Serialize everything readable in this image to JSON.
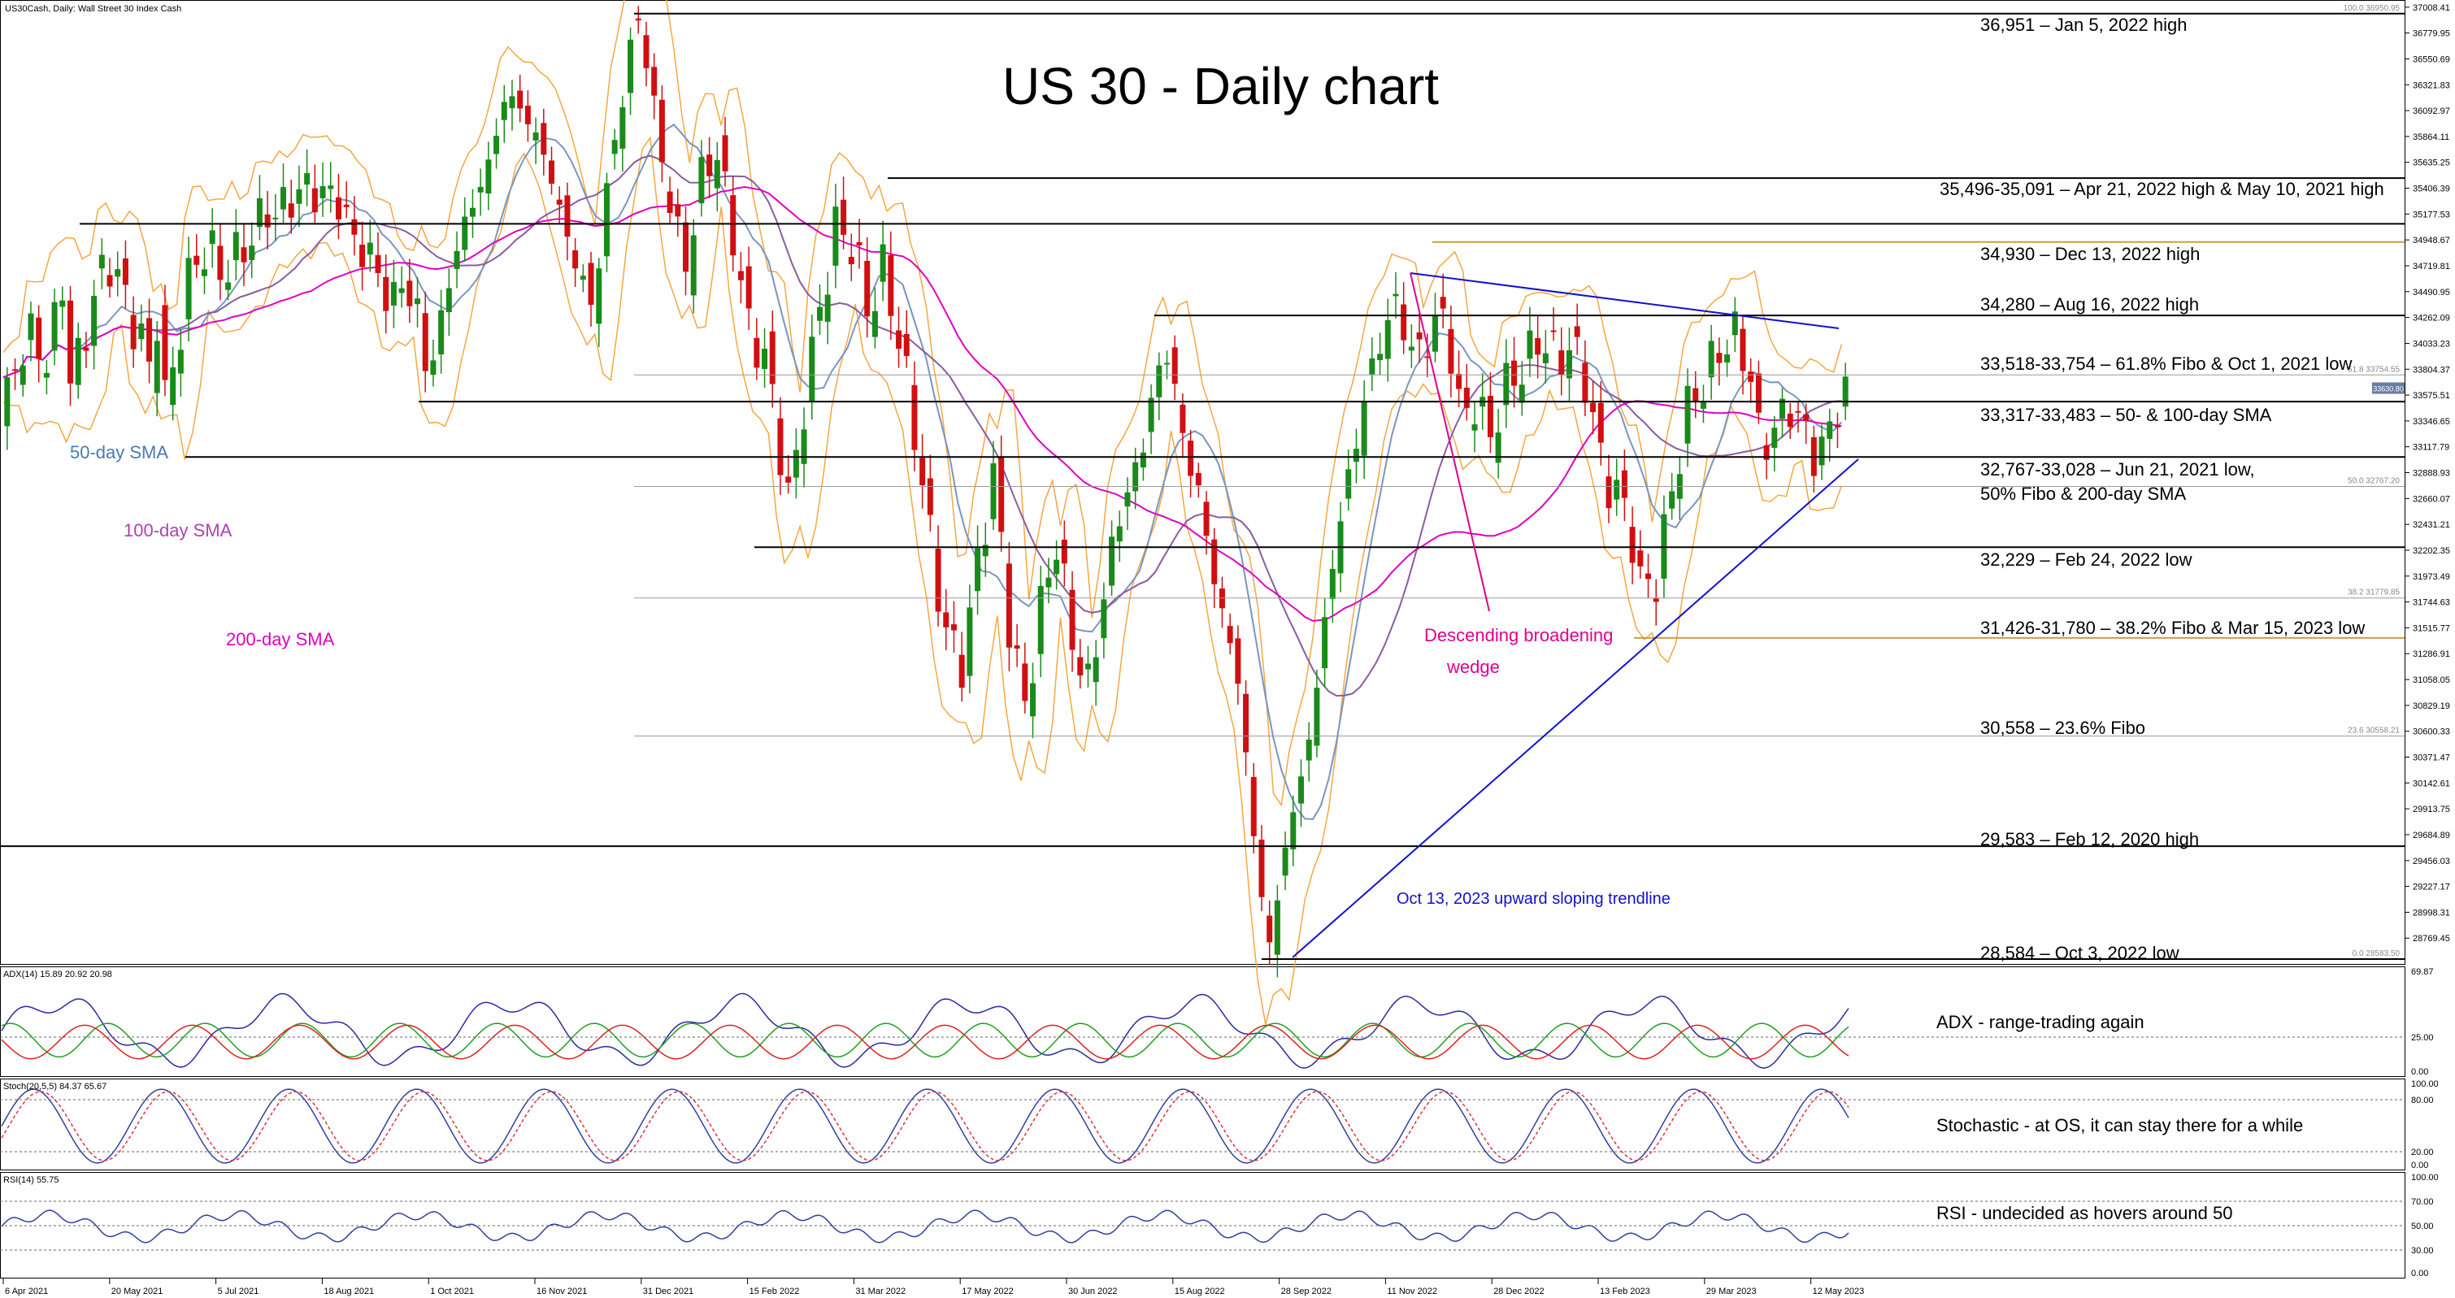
{
  "chart_data": {
    "type": "candlestick",
    "title": "US 30 - Daily chart",
    "instrument_header": "US30Cash, Daily:  Wall Street 30 Index Cash",
    "price_axis": {
      "range": [
        28584,
        37000
      ],
      "ticks": [
        "37008.41",
        "36779.95",
        "36550.69",
        "36321.83",
        "36092.97",
        "35864.11",
        "35635.25",
        "35406.39",
        "35177.53",
        "34948.67",
        "34719.81",
        "34490.95",
        "34262.09",
        "34033.23",
        "33804.37",
        "33575.51",
        "33346.65",
        "33117.79",
        "32888.93",
        "32660.07",
        "32431.21",
        "32202.35",
        "31973.49",
        "31744.63",
        "31515.77",
        "31286.91",
        "31058.05",
        "30829.19",
        "30600.33",
        "30371.47",
        "30142.61",
        "29913.75",
        "29684.89",
        "29456.03",
        "29227.17",
        "28998.31",
        "28769.45"
      ]
    },
    "date_axis": [
      "6 Apr 2021",
      "20 May 2021",
      "5 Jul 2021",
      "18 Aug 2021",
      "1 Oct 2021",
      "16 Nov 2021",
      "31 Dec 2021",
      "15 Feb 2022",
      "31 Mar 2022",
      "17 May 2022",
      "30 Jun 2022",
      "15 Aug 2022",
      "28 Sep 2022",
      "11 Nov 2022",
      "28 Dec 2022",
      "13 Feb 2023",
      "29 Mar 2023",
      "12 May 2023"
    ],
    "levels": [
      {
        "value": 36951,
        "label": "36,951 – Jan 5, 2022 high"
      },
      {
        "value": 35496,
        "label": "35,496-35,091 – Apr 21, 2022 high & May 10, 2021 high"
      },
      {
        "value": 35091,
        "label": ""
      },
      {
        "value": 34930,
        "label": "34,930 – Dec 13, 2022 high"
      },
      {
        "value": 34280,
        "label": "34,280 – Aug 16, 2022 high"
      },
      {
        "value": 33754,
        "label": "33,518-33,754 – 61.8% Fibo & Oct 1, 2021 low"
      },
      {
        "value": 33483,
        "label": "33,317-33,483 – 50- & 100-day SMA"
      },
      {
        "value": 33028,
        "label": "32,767-33,028 – Jun 21, 2021 low,"
      },
      {
        "value": 32767,
        "label": "50% Fibo & 200-day SMA"
      },
      {
        "value": 32229,
        "label": "32,229 – Feb 24, 2022 low"
      },
      {
        "value": 31780,
        "label": "31,426-31,780 – 38.2% Fibo & Mar 15, 2023 low"
      },
      {
        "value": 30558,
        "label": "30,558 – 23.6% Fibo"
      },
      {
        "value": 29583,
        "label": "29,583 – Feb 12, 2020 high"
      },
      {
        "value": 28584,
        "label": "28,584 – Oct 3, 2022 low"
      }
    ],
    "fib_labels": [
      "100.0 36950.95",
      "61.8 33754.55",
      "50.0 32767.20",
      "38.2 31779.85",
      "23.6 30558.21",
      "0.0 28583.50"
    ],
    "current_price": "33630.80",
    "annotations": {
      "sma50": "50-day SMA",
      "sma100": "100-day SMA",
      "sma200": "200-day SMA",
      "wedge_line1": "Descending broadening",
      "wedge_line2": "wedge",
      "trendline": "Oct 13, 2023 upward sloping trendline"
    },
    "colors": {
      "up": "#1a8a1a",
      "down": "#d01010",
      "sma50": "#7a95c0",
      "sma100": "#8a5ca0",
      "sma200": "#e000c0",
      "bands": "#f7a640",
      "trend": "#1010d0",
      "level": "#000000",
      "fib_gold": "#c8a040",
      "adx": "#2a2aa0",
      "dip": "#20a020",
      "dim": "#e02020",
      "stoch_main": "#3040a0",
      "stoch_sig": "#e03040",
      "rsi": "#3040a0",
      "wedge_label": "#e0008a",
      "ma_label_50": "#4a7ab0",
      "ma_label_100": "#b040b0"
    },
    "adx": {
      "header": "ADX(14) 15.89 20.92 20.98",
      "ticks": [
        "69.87",
        "25.00",
        "0.00"
      ],
      "note": "ADX - range-trading again"
    },
    "stoch": {
      "header": "Stoch(20,5,5) 84.37 65.67",
      "ticks": [
        "100.00",
        "80.00",
        "20.00",
        "0.00"
      ],
      "note": "Stochastic - at OS, it can stay there for a while"
    },
    "rsi": {
      "header": "RSI(14) 55.75",
      "ticks": [
        "100.00",
        "70.00",
        "50.00",
        "30.00",
        "0.00"
      ],
      "note": "RSI - undecided as hovers around 50"
    },
    "approx_closes": [
      [
        0,
        33300
      ],
      [
        10,
        33900
      ],
      [
        20,
        34100
      ],
      [
        30,
        33850
      ],
      [
        35,
        34250
      ],
      [
        40,
        34650
      ],
      [
        45,
        33500
      ],
      [
        50,
        33950
      ],
      [
        60,
        34500
      ],
      [
        70,
        34800
      ],
      [
        80,
        34350
      ],
      [
        90,
        34050
      ],
      [
        95,
        33700
      ],
      [
        100,
        34450
      ],
      [
        105,
        33300
      ],
      [
        110,
        33900
      ],
      [
        120,
        34650
      ],
      [
        130,
        34900
      ],
      [
        140,
        34650
      ],
      [
        150,
        34800
      ],
      [
        160,
        35000
      ],
      [
        170,
        35250
      ],
      [
        175,
        35150
      ],
      [
        185,
        35350
      ],
      [
        195,
        35400
      ],
      [
        205,
        35350
      ],
      [
        215,
        35300
      ],
      [
        225,
        34900
      ],
      [
        235,
        34800
      ],
      [
        245,
        34400
      ],
      [
        255,
        34550
      ],
      [
        265,
        34300
      ],
      [
        270,
        33700
      ],
      [
        280,
        34300
      ],
      [
        290,
        34950
      ],
      [
        300,
        35300
      ],
      [
        310,
        35650
      ],
      [
        320,
        36250
      ],
      [
        330,
        36100
      ],
      [
        340,
        35850
      ],
      [
        350,
        35450
      ],
      [
        360,
        34900
      ],
      [
        370,
        34550
      ],
      [
        375,
        34300
      ],
      [
        385,
        35500
      ],
      [
        395,
        36300
      ],
      [
        400,
        36700
      ],
      [
        405,
        36950
      ],
      [
        415,
        36000
      ],
      [
        425,
        35200
      ],
      [
        435,
        34700
      ],
      [
        445,
        35600
      ],
      [
        455,
        35700
      ],
      [
        465,
        34900
      ],
      [
        475,
        34100
      ],
      [
        485,
        33900
      ],
      [
        495,
        33000
      ],
      [
        500,
        32600
      ],
      [
        510,
        33600
      ],
      [
        520,
        34400
      ],
      [
        530,
        35100
      ],
      [
        540,
        34900
      ],
      [
        550,
        34300
      ],
      [
        560,
        34700
      ],
      [
        570,
        34000
      ],
      [
        580,
        33200
      ],
      [
        590,
        32200
      ],
      [
        600,
        31400
      ],
      [
        610,
        31200
      ],
      [
        620,
        32200
      ],
      [
        630,
        32900
      ],
      [
        640,
        31400
      ],
      [
        650,
        30800
      ],
      [
        660,
        31800
      ],
      [
        670,
        32300
      ],
      [
        680,
        31300
      ],
      [
        690,
        31000
      ],
      [
        700,
        31900
      ],
      [
        710,
        32600
      ],
      [
        720,
        32900
      ],
      [
        730,
        33600
      ],
      [
        740,
        34000
      ],
      [
        750,
        33100
      ],
      [
        760,
        32700
      ],
      [
        765,
        32200
      ],
      [
        775,
        31600
      ],
      [
        785,
        31000
      ],
      [
        795,
        29500
      ],
      [
        805,
        28650
      ],
      [
        815,
        29700
      ],
      [
        825,
        30200
      ],
      [
        835,
        31100
      ],
      [
        845,
        32200
      ],
      [
        855,
        32900
      ],
      [
        865,
        33600
      ],
      [
        875,
        34100
      ],
      [
        885,
        34400
      ],
      [
        895,
        33900
      ],
      [
        905,
        34100
      ],
      [
        915,
        34300
      ],
      [
        925,
        33400
      ],
      [
        935,
        33500
      ],
      [
        945,
        33200
      ],
      [
        955,
        33700
      ],
      [
        965,
        33800
      ],
      [
        975,
        34100
      ],
      [
        985,
        33900
      ],
      [
        995,
        34000
      ],
      [
        1005,
        33700
      ],
      [
        1015,
        32900
      ],
      [
        1025,
        32700
      ],
      [
        1035,
        32300
      ],
      [
        1040,
        31800
      ],
      [
        1050,
        32000
      ],
      [
        1060,
        32800
      ],
      [
        1070,
        33500
      ],
      [
        1080,
        33700
      ],
      [
        1090,
        34000
      ],
      [
        1100,
        34100
      ],
      [
        1110,
        33700
      ],
      [
        1115,
        33100
      ],
      [
        1125,
        33300
      ],
      [
        1135,
        33500
      ],
      [
        1145,
        33200
      ],
      [
        1150,
        33000
      ],
      [
        1160,
        33300
      ],
      [
        1168,
        33630
      ]
    ]
  }
}
